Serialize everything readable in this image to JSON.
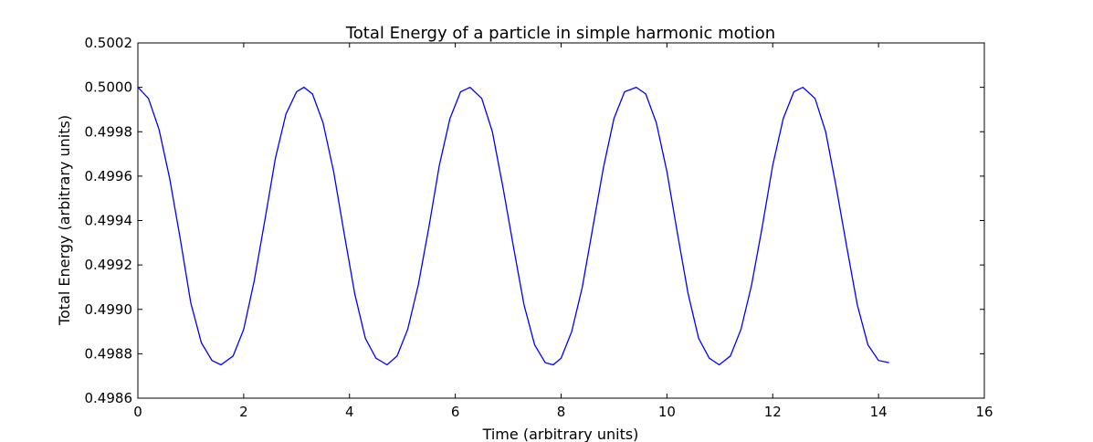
{
  "chart_data": {
    "type": "line",
    "title": "Total Energy of a particle in simple harmonic motion",
    "xlabel": "Time (arbitrary units)",
    "ylabel": "Total Energy (arbitrary units)",
    "xlim": [
      0,
      16
    ],
    "ylim": [
      0.4986,
      0.5002
    ],
    "x_ticks": [
      0,
      2,
      4,
      6,
      8,
      10,
      12,
      14,
      16
    ],
    "x_tick_labels": [
      "0",
      "2",
      "4",
      "6",
      "8",
      "10",
      "12",
      "14",
      "16"
    ],
    "y_ticks": [
      0.4986,
      0.4988,
      0.499,
      0.4992,
      0.4994,
      0.4996,
      0.4998,
      0.5,
      0.5002
    ],
    "y_tick_labels": [
      "0.4986",
      "0.4988",
      "0.4990",
      "0.4992",
      "0.4994",
      "0.4996",
      "0.4998",
      "0.5000",
      "0.5002"
    ],
    "grid": false,
    "line_color": "#0000ff",
    "series": [
      {
        "x": [
          0.0,
          0.2,
          0.4,
          0.6,
          0.8,
          1.0,
          1.2,
          1.4,
          1.57,
          1.8,
          2.0,
          2.2,
          2.4,
          2.6,
          2.8,
          3.0,
          3.14,
          3.3,
          3.5,
          3.7,
          3.9,
          4.1,
          4.3,
          4.5,
          4.71,
          4.9,
          5.1,
          5.3,
          5.5,
          5.7,
          5.9,
          6.1,
          6.28,
          6.5,
          6.7,
          6.9,
          7.1,
          7.3,
          7.5,
          7.7,
          7.85,
          8.0,
          8.2,
          8.4,
          8.6,
          8.8,
          9.0,
          9.2,
          9.42,
          9.6,
          9.8,
          10.0,
          10.2,
          10.4,
          10.6,
          10.8,
          10.99,
          11.2,
          11.4,
          11.6,
          11.8,
          12.0,
          12.2,
          12.4,
          12.57,
          12.8,
          13.0,
          13.2,
          13.4,
          13.6,
          13.8,
          14.0,
          14.2
        ],
        "y": [
          0.5,
          0.49995,
          0.49981,
          0.49959,
          0.49932,
          0.49903,
          0.49885,
          0.49877,
          0.49875,
          0.49879,
          0.49891,
          0.49913,
          0.4994,
          0.49968,
          0.49988,
          0.49998,
          0.5,
          0.49997,
          0.49984,
          0.49962,
          0.49934,
          0.49907,
          0.49887,
          0.49878,
          0.49875,
          0.49879,
          0.49891,
          0.49911,
          0.49937,
          0.49965,
          0.49986,
          0.49998,
          0.5,
          0.49995,
          0.4998,
          0.49955,
          0.49928,
          0.49902,
          0.49884,
          0.49876,
          0.49875,
          0.49878,
          0.4989,
          0.4991,
          0.49937,
          0.49964,
          0.49986,
          0.49998,
          0.5,
          0.49997,
          0.49984,
          0.49962,
          0.49934,
          0.49907,
          0.49887,
          0.49878,
          0.49875,
          0.49879,
          0.49891,
          0.49911,
          0.49937,
          0.49965,
          0.49986,
          0.49998,
          0.5,
          0.49995,
          0.4998,
          0.49955,
          0.49928,
          0.49902,
          0.49884,
          0.49877,
          0.49876
        ]
      }
    ]
  }
}
